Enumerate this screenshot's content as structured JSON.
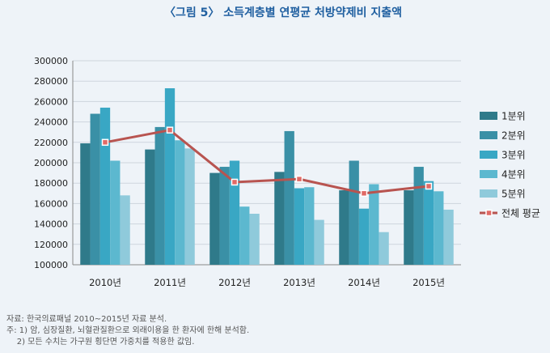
{
  "chart_data": {
    "type": "bar",
    "title": "〈그림 5〉 소득계층별 연평균 처방약제비 지출액",
    "categories": [
      "2010년",
      "2011년",
      "2012년",
      "2013년",
      "2014년",
      "2015년"
    ],
    "series": [
      {
        "name": "1분위",
        "color": "#2f7a8a",
        "values": [
          219000,
          213000,
          190000,
          191000,
          173000,
          173000
        ]
      },
      {
        "name": "2분위",
        "color": "#3a90a6",
        "values": [
          248000,
          235000,
          196000,
          231000,
          202000,
          196000
        ]
      },
      {
        "name": "3분위",
        "color": "#39a7c4",
        "values": [
          254000,
          273000,
          202000,
          175000,
          155000,
          182000
        ]
      },
      {
        "name": "4분위",
        "color": "#5cb8cf",
        "values": [
          202000,
          222000,
          157000,
          176000,
          179000,
          172000
        ]
      },
      {
        "name": "5분위",
        "color": "#8fcadb",
        "values": [
          168000,
          214000,
          150000,
          144000,
          132000,
          154000
        ]
      }
    ],
    "line_series": {
      "name": "전체 평균",
      "color": "#b85450",
      "values": [
        220000,
        232000,
        181000,
        184000,
        170000,
        177000
      ]
    },
    "ylim": [
      100000,
      300000
    ],
    "yticks": [
      100000,
      120000,
      140000,
      160000,
      180000,
      200000,
      220000,
      240000,
      260000,
      280000,
      300000
    ],
    "ytick_labels": [
      "100000",
      "120000",
      "140000",
      "160000",
      "180000",
      "200000",
      "220000",
      "240000",
      "260000",
      "280000",
      "300000"
    ],
    "grid": true,
    "legend": "right"
  },
  "notes": [
    "자료: 한국의료패널 2010~2015년 자료 분석.",
    "주: 1) 암, 심장질환, 뇌혈관질환으로 외래이용을 한 환자에 한해 분석함.",
    "    2) 모든 수치는 가구원 횡단면 가중치를 적용한 값임."
  ]
}
